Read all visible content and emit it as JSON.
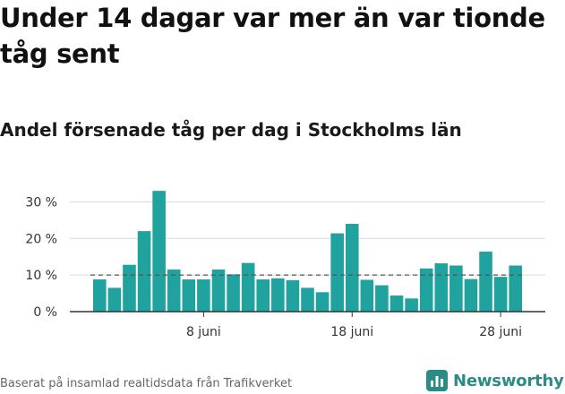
{
  "title": "Under 14 dagar var mer än var tionde tåg sent",
  "subtitle": "Andel försenade tåg per dag i Stockholms län",
  "source": "Baserat på insamlad realtidsdata från Trafikverket",
  "brand": {
    "name": "Newsworthy",
    "logo_icon": "bar-chart-logo-icon"
  },
  "colors": {
    "bar": "#20a39e",
    "reference_line": "#555555",
    "grid": "#d9d9d9",
    "brand": "#2b8c86"
  },
  "chart_data": {
    "type": "bar",
    "x": [
      "1 juni",
      "2 juni",
      "3 juni",
      "4 juni",
      "5 juni",
      "6 juni",
      "7 juni",
      "8 juni",
      "9 juni",
      "10 juni",
      "11 juni",
      "12 juni",
      "13 juni",
      "14 juni",
      "15 juni",
      "16 juni",
      "17 juni",
      "18 juni",
      "19 juni",
      "20 juni",
      "21 juni",
      "22 juni",
      "23 juni",
      "24 juni",
      "25 juni",
      "26 juni",
      "27 juni",
      "28 juni",
      "29 juni"
    ],
    "values": [
      8.8,
      6.5,
      12.8,
      22,
      33,
      11.5,
      8.8,
      8.8,
      11.5,
      10.2,
      13.3,
      8.8,
      9.1,
      8.6,
      6.5,
      5.3,
      21.4,
      24,
      8.7,
      7.2,
      4.4,
      3.6,
      11.8,
      13.2,
      12.6,
      8.9,
      16.4,
      9.5,
      12.6
    ],
    "reference_line": 10,
    "ylim": [
      0,
      35
    ],
    "yticks": [
      0,
      10,
      20,
      30
    ],
    "ytick_labels": [
      "0 %",
      "10 %",
      "20 %",
      "30 %"
    ],
    "xtick_labels": [
      {
        "index": 7,
        "label": "8 juni"
      },
      {
        "index": 17,
        "label": "18 juni"
      },
      {
        "index": 27,
        "label": "28 juni"
      }
    ],
    "grid": true
  }
}
